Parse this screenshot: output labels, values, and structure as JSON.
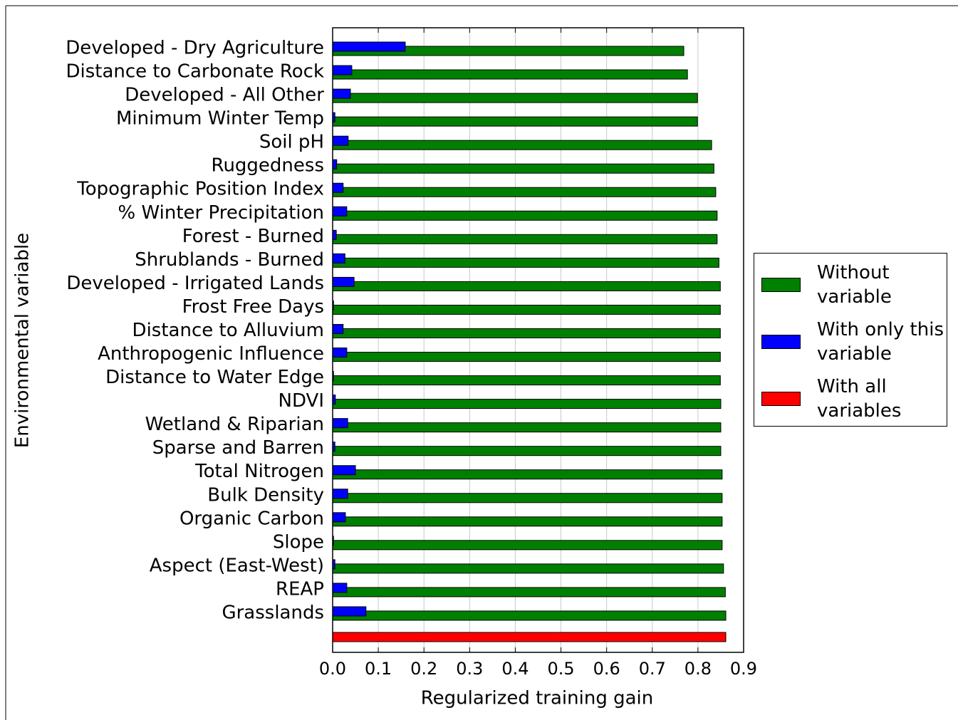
{
  "chart_data": {
    "type": "bar",
    "orientation": "horizontal",
    "xlabel": "Regularized training gain",
    "ylabel": "Environmental variable",
    "categories": [
      "Developed - Dry Agriculture",
      "Distance to Carbonate Rock",
      "Developed - All Other",
      "Minimum Winter Temp",
      "Soil pH",
      "Ruggedness",
      "Topographic Position Index",
      "% Winter Precipitation",
      "Forest - Burned",
      "Shrublands - Burned",
      "Developed - Irrigated Lands",
      "Frost Free Days",
      "Distance to Alluvium",
      "Anthropogenic Influence",
      "Distance to Water Edge",
      "NDVI",
      "Wetland & Riparian",
      "Sparse and Barren",
      "Total Nitrogen",
      "Bulk Density",
      "Organic Carbon",
      "Slope",
      "Aspect (East-West)",
      "REAP",
      "Grasslands",
      null
    ],
    "series": [
      {
        "name": "Without variable",
        "color": "#008000",
        "values": [
          0.769,
          0.777,
          0.799,
          0.799,
          0.83,
          0.835,
          0.839,
          0.842,
          0.842,
          0.846,
          0.849,
          0.849,
          0.849,
          0.849,
          0.849,
          0.85,
          0.85,
          0.85,
          0.853,
          0.853,
          0.853,
          0.853,
          0.856,
          0.86,
          0.861,
          null
        ]
      },
      {
        "name": "With only this variable",
        "color": "#0000ff",
        "values": [
          0.159,
          0.042,
          0.039,
          0.005,
          0.034,
          0.009,
          0.023,
          0.031,
          0.008,
          0.027,
          0.047,
          0.002,
          0.023,
          0.031,
          0.002,
          0.006,
          0.033,
          0.005,
          0.05,
          0.033,
          0.028,
          0.002,
          0.005,
          0.031,
          0.073,
          null
        ]
      },
      {
        "name": "With all variables",
        "color": "#ff0000",
        "values": [
          null,
          null,
          null,
          null,
          null,
          null,
          null,
          null,
          null,
          null,
          null,
          null,
          null,
          null,
          null,
          null,
          null,
          null,
          null,
          null,
          null,
          null,
          null,
          null,
          null,
          0.861
        ]
      }
    ],
    "xlim": [
      0,
      0.9
    ],
    "xticks": [
      {
        "value": 0,
        "label": "0.0"
      },
      0.1,
      0.2,
      0.3,
      0.4,
      0.5,
      0.6,
      0.7,
      0.8,
      0.9
    ],
    "grid": true,
    "legend": "right"
  }
}
